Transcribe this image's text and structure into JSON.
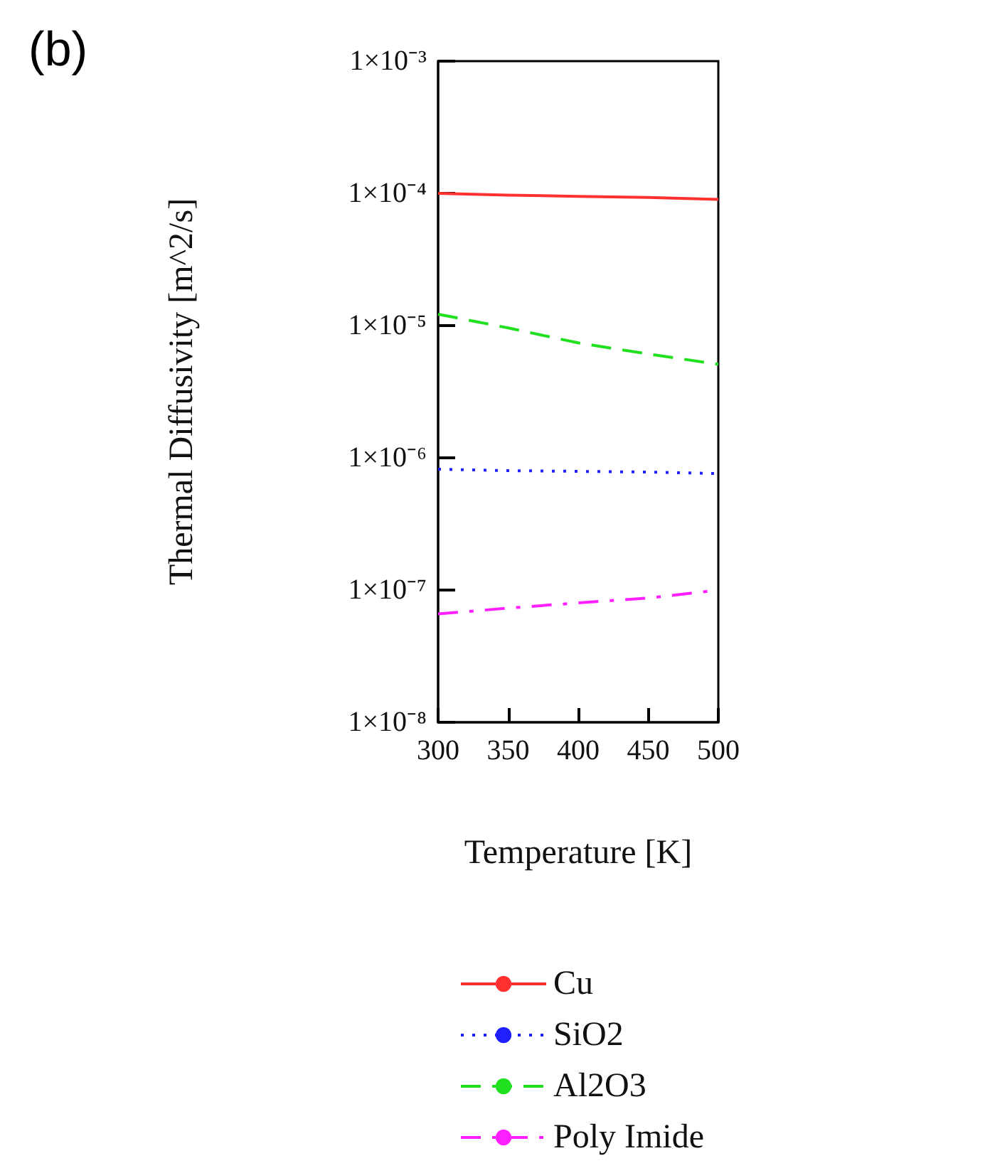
{
  "chart_data": {
    "type": "line",
    "xlabel": "Temperature [K]",
    "ylabel": "Thermal Diffusivity [m^2/s]",
    "annotations": [
      "(b)"
    ],
    "x": [
      300,
      350,
      400,
      450,
      500
    ],
    "series": [
      {
        "name": "Cu",
        "color": "#ff3030",
        "line_style": "solid",
        "values": [
          0.0001,
          9.7e-05,
          9.5e-05,
          9.3e-05,
          9e-05
        ]
      },
      {
        "name": "SiO2",
        "color": "#2020ff",
        "line_style": "dotted",
        "values": [
          8.2e-07,
          8e-07,
          7.9e-07,
          7.8e-07,
          7.6e-07
        ]
      },
      {
        "name": "Al2O3",
        "color": "#20e020",
        "line_style": "dashed",
        "values": [
          1.22e-05,
          9.6e-06,
          7.4e-06,
          6.1e-06,
          5.1e-06
        ]
      },
      {
        "name": "Poly Imide",
        "color": "#ff20ff",
        "line_style": "dashdot",
        "values": [
          6.6e-08,
          7.3e-08,
          8e-08,
          8.7e-08,
          1e-07
        ]
      }
    ],
    "xlim": [
      300,
      500
    ],
    "xticks": [
      300,
      350,
      400,
      450,
      500
    ],
    "ylim": [
      1e-08,
      0.001
    ],
    "log": "y",
    "yticks": [
      {
        "value": 1e-08,
        "label": "1×10⁻⁸"
      },
      {
        "value": 1e-07,
        "label": "1×10⁻⁷"
      },
      {
        "value": 1e-06,
        "label": "1×10⁻⁶"
      },
      {
        "value": 1e-05,
        "label": "1×10⁻⁵"
      },
      {
        "value": 0.0001,
        "label": "1×10⁻⁴"
      },
      {
        "value": 0.001,
        "label": "1×10⁻³"
      }
    ],
    "grid": false,
    "legend": "bottom",
    "marker": "none"
  }
}
